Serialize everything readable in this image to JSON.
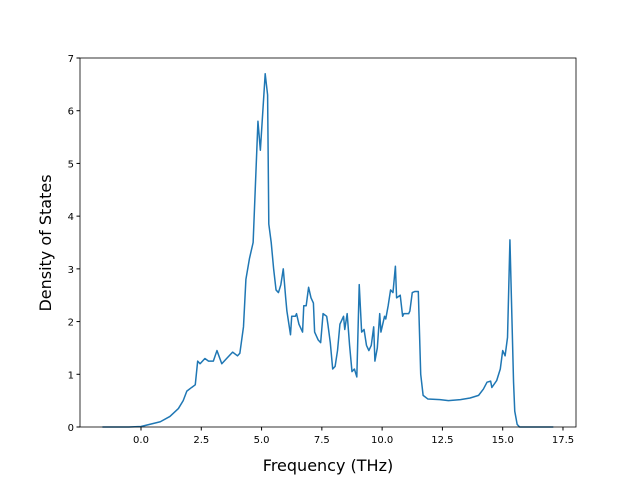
{
  "chart_data": {
    "type": "line",
    "xlabel": "Frequency (THz)",
    "ylabel": "Density of States",
    "xlim": [
      -2.53,
      18.04
    ],
    "ylim": [
      0,
      7
    ],
    "xticks": [
      {
        "value": 0,
        "label": "0.0"
      },
      {
        "value": 2.5,
        "label": "2.5"
      },
      {
        "value": 5,
        "label": "5.0"
      },
      {
        "value": 7.5,
        "label": "7.5"
      },
      {
        "value": 10,
        "label": "10.0"
      },
      {
        "value": 12.5,
        "label": "12.5"
      },
      {
        "value": 15,
        "label": "15.0"
      },
      {
        "value": 17.5,
        "label": "17.5"
      }
    ],
    "yticks": [
      0,
      1,
      2,
      3,
      4,
      5,
      6,
      7
    ],
    "grid": false,
    "series": [
      {
        "color": "#1f77b4",
        "x": [
          -1.6,
          -0.5,
          0,
          0.8,
          1.2,
          1.55,
          1.75,
          1.9,
          2.1,
          2.25,
          2.35,
          2.45,
          2.65,
          2.8,
          3.0,
          3.15,
          3.35,
          3.55,
          3.8,
          4.0,
          4.1,
          4.25,
          4.35,
          4.5,
          4.65,
          4.85,
          4.95,
          5.15,
          5.25,
          5.3,
          5.4,
          5.5,
          5.6,
          5.7,
          5.8,
          5.9,
          6.0,
          6.05,
          6.2,
          6.25,
          6.4,
          6.45,
          6.55,
          6.7,
          6.75,
          6.85,
          6.95,
          7.05,
          7.15,
          7.2,
          7.35,
          7.45,
          7.55,
          7.7,
          7.75,
          7.85,
          7.95,
          8.05,
          8.15,
          8.25,
          8.4,
          8.45,
          8.55,
          8.65,
          8.75,
          8.85,
          8.95,
          9.05,
          9.15,
          9.25,
          9.35,
          9.45,
          9.55,
          9.65,
          9.7,
          9.8,
          9.9,
          9.95,
          10.1,
          10.15,
          10.25,
          10.35,
          10.45,
          10.55,
          10.6,
          10.75,
          10.85,
          10.9,
          11.1,
          11.15,
          11.25,
          11.35,
          11.5,
          11.6,
          11.7,
          11.9,
          12.4,
          12.75,
          13.25,
          13.65,
          14.0,
          14.2,
          14.35,
          14.5,
          14.55,
          14.75,
          14.9,
          15.0,
          15.1,
          15.2,
          15.3,
          15.45,
          15.5,
          15.6,
          15.7,
          17.1
        ],
        "values": [
          0,
          0,
          0.01,
          0.1,
          0.2,
          0.35,
          0.5,
          0.68,
          0.75,
          0.8,
          1.25,
          1.2,
          1.3,
          1.25,
          1.25,
          1.45,
          1.2,
          1.3,
          1.42,
          1.35,
          1.4,
          1.9,
          2.8,
          3.2,
          3.5,
          5.8,
          5.25,
          6.7,
          6.3,
          3.85,
          3.5,
          3.0,
          2.6,
          2.55,
          2.7,
          3.0,
          2.45,
          2.2,
          1.75,
          2.1,
          2.1,
          2.15,
          1.95,
          1.8,
          2.3,
          2.3,
          2.65,
          2.45,
          2.35,
          1.8,
          1.65,
          1.6,
          2.15,
          2.1,
          1.95,
          1.6,
          1.1,
          1.15,
          1.45,
          1.95,
          2.1,
          1.85,
          2.15,
          1.55,
          1.05,
          1.1,
          0.95,
          2.7,
          1.8,
          1.85,
          1.55,
          1.45,
          1.55,
          1.9,
          1.25,
          1.5,
          2.15,
          1.8,
          2.1,
          2.05,
          2.3,
          2.6,
          2.55,
          3.05,
          2.45,
          2.5,
          2.1,
          2.15,
          2.15,
          2.2,
          2.55,
          2.57,
          2.57,
          1.0,
          0.6,
          0.53,
          0.52,
          0.5,
          0.52,
          0.55,
          0.6,
          0.72,
          0.85,
          0.87,
          0.75,
          0.88,
          1.1,
          1.45,
          1.35,
          1.7,
          3.55,
          0.85,
          0.3,
          0.05,
          0,
          0
        ]
      }
    ]
  }
}
